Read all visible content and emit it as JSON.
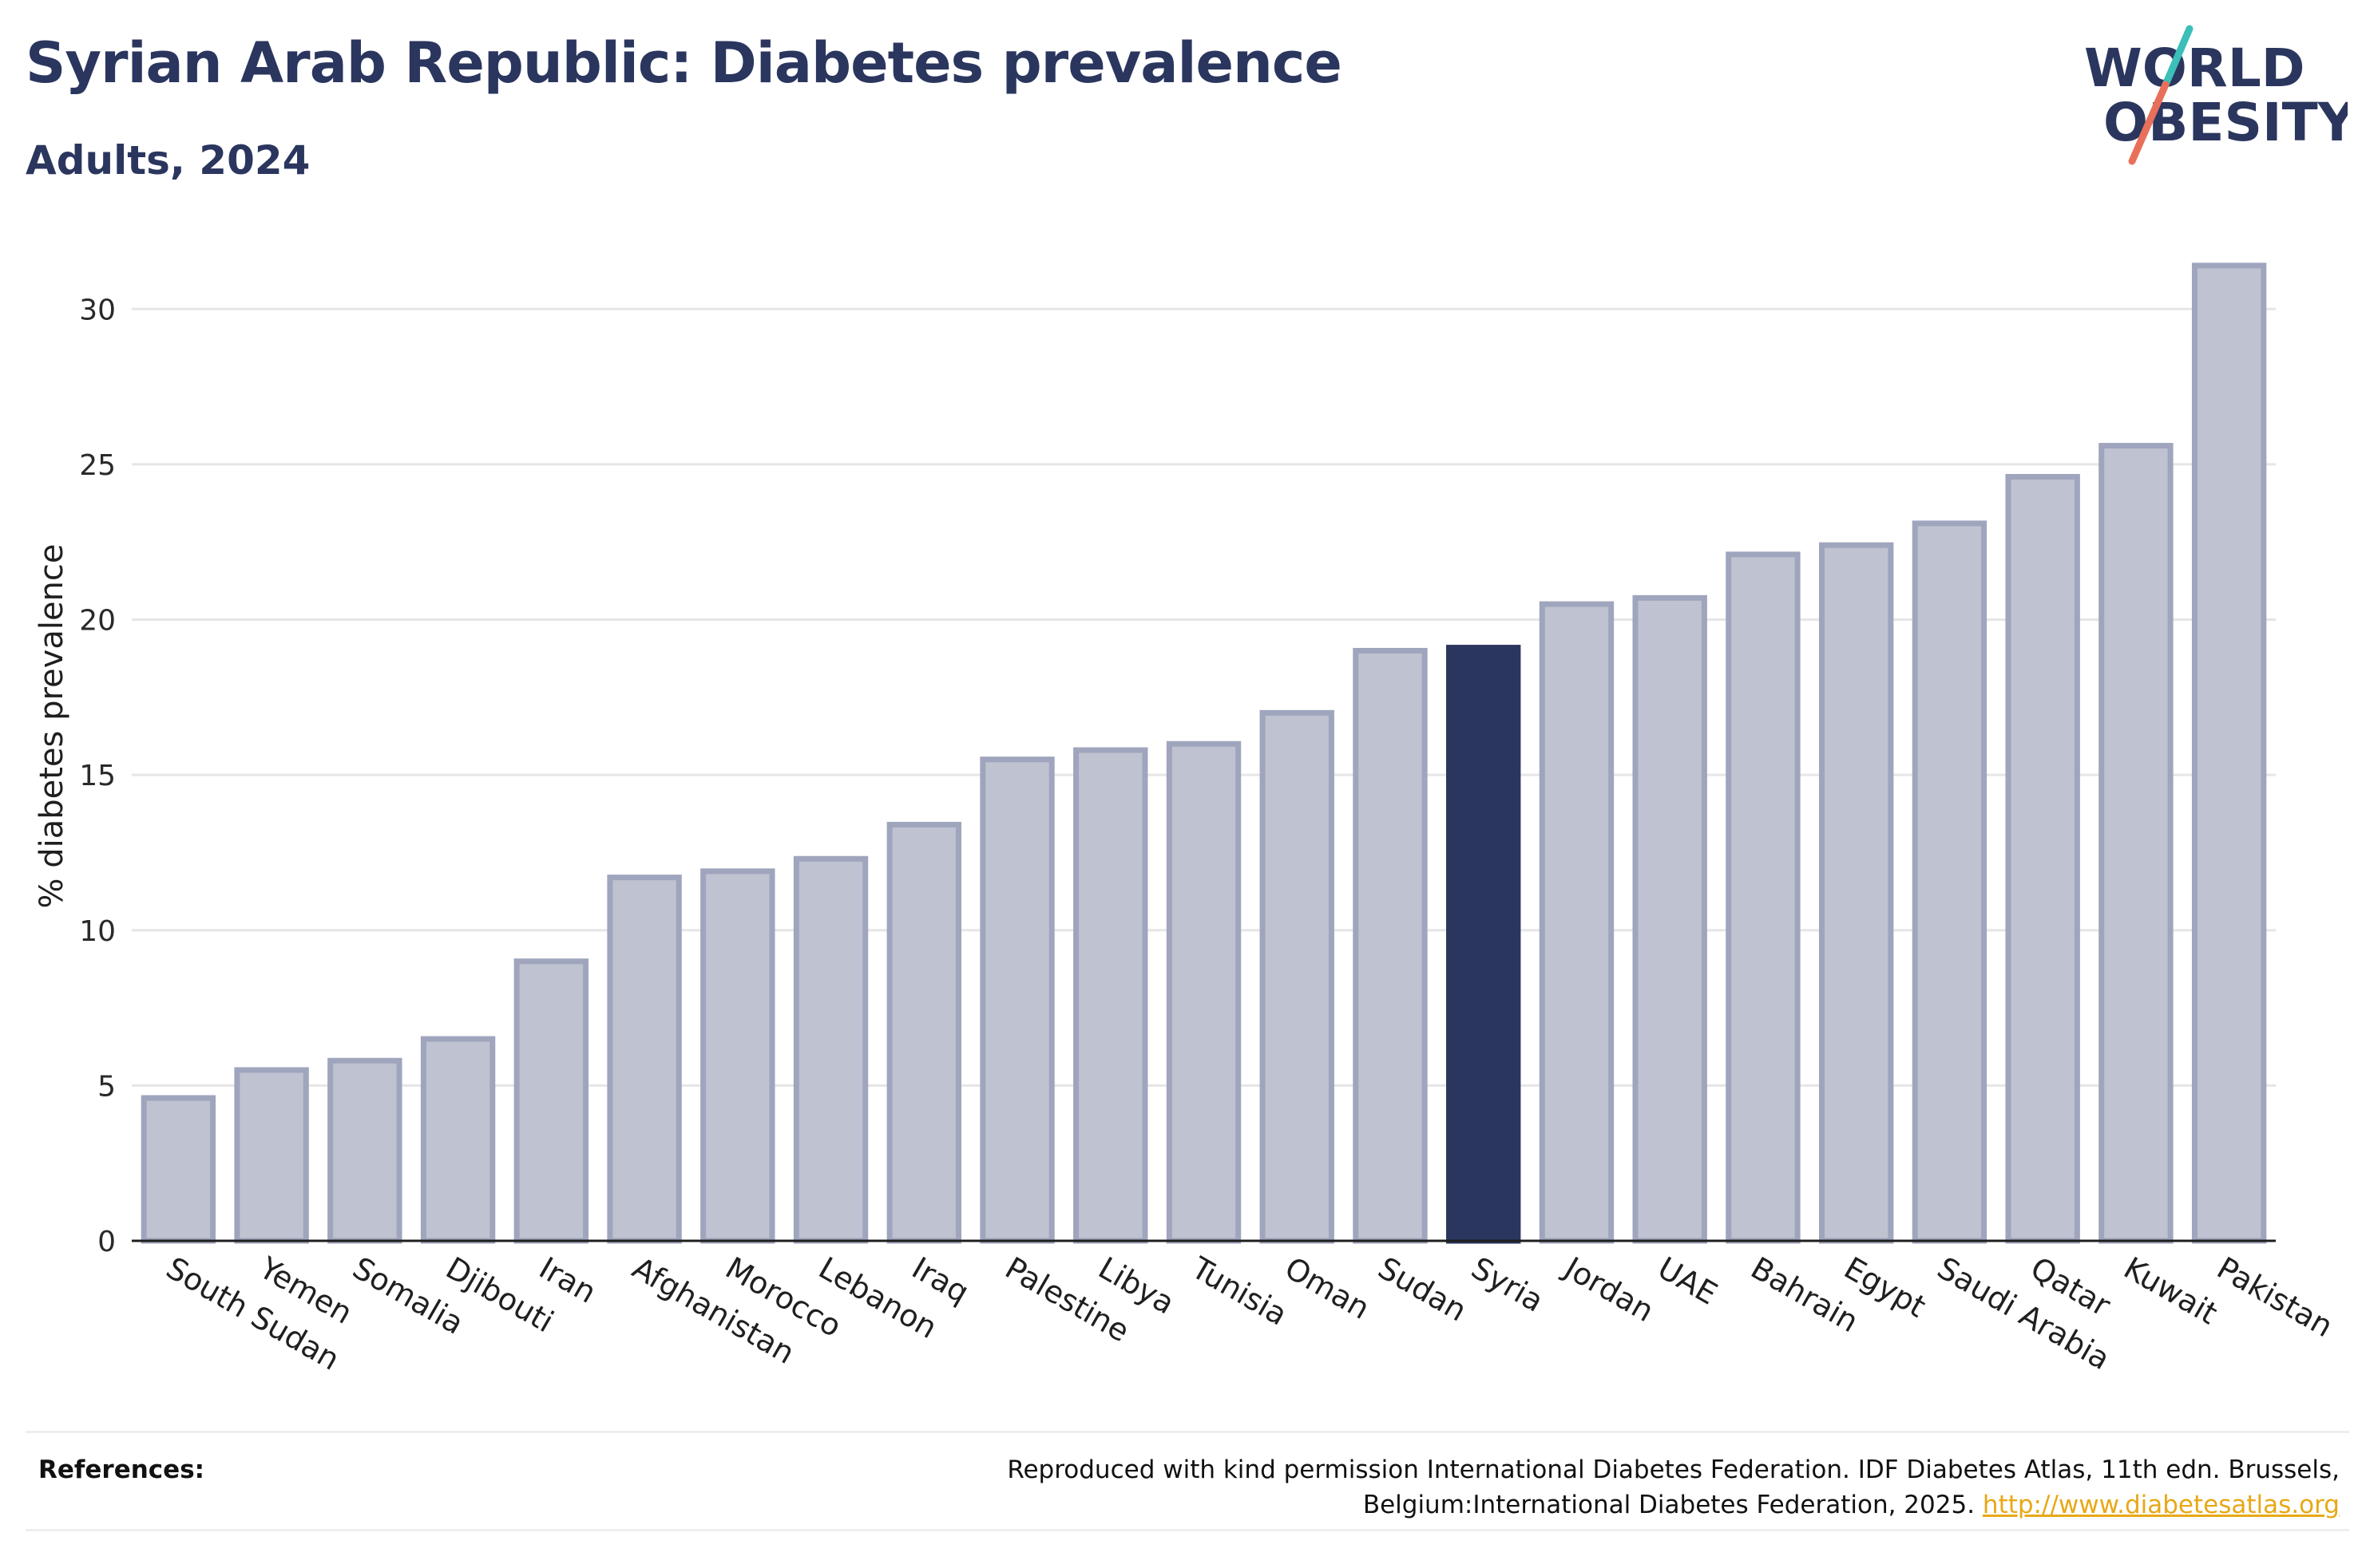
{
  "header": {
    "title": "Syrian Arab Republic: Diabetes prevalence",
    "subtitle": "Adults, 2024"
  },
  "logo": {
    "line1": "WORLD",
    "line2": "OBESITY",
    "colors": {
      "text": "#2b365f",
      "slash_top": "#3bbfb8",
      "slash_bottom": "#e8705b"
    }
  },
  "colors": {
    "bar_fill": "#bfc2d0",
    "bar_stroke": "#9fa5bd",
    "highlight": "#2b365f",
    "grid": "#e6e6e6",
    "link": "#e8a816"
  },
  "chart_data": {
    "type": "bar",
    "title": "Syrian Arab Republic: Diabetes prevalence",
    "subtitle": "Adults, 2024",
    "xlabel": "",
    "ylabel": "% diabetes prevalence",
    "ylim": [
      0,
      32.5
    ],
    "yticks": [
      0,
      5,
      10,
      15,
      20,
      25,
      30
    ],
    "grid": true,
    "highlight": "Syria",
    "categories": [
      "South Sudan",
      "Yemen",
      "Somalia",
      "Djibouti",
      "Iran",
      "Afghanistan",
      "Morocco",
      "Lebanon",
      "Iraq",
      "Palestine",
      "Libya",
      "Tunisia",
      "Oman",
      "Sudan",
      "Syria",
      "Jordan",
      "UAE",
      "Bahrain",
      "Egypt",
      "Saudi Arabia",
      "Qatar",
      "Kuwait",
      "Pakistan"
    ],
    "values": [
      4.6,
      5.5,
      5.8,
      6.5,
      9.0,
      11.7,
      11.9,
      12.3,
      13.4,
      15.5,
      15.8,
      16.0,
      17.0,
      19.0,
      19.1,
      20.5,
      20.7,
      22.1,
      22.4,
      23.1,
      24.6,
      25.6,
      31.4
    ]
  },
  "references": {
    "label": "References:",
    "text": "Reproduced with kind permission International Diabetes Federation. IDF Diabetes Atlas, 11th edn. Brussels, Belgium:International Diabetes Federation, 2025.",
    "link": "http://www.diabetesatlas.org"
  }
}
